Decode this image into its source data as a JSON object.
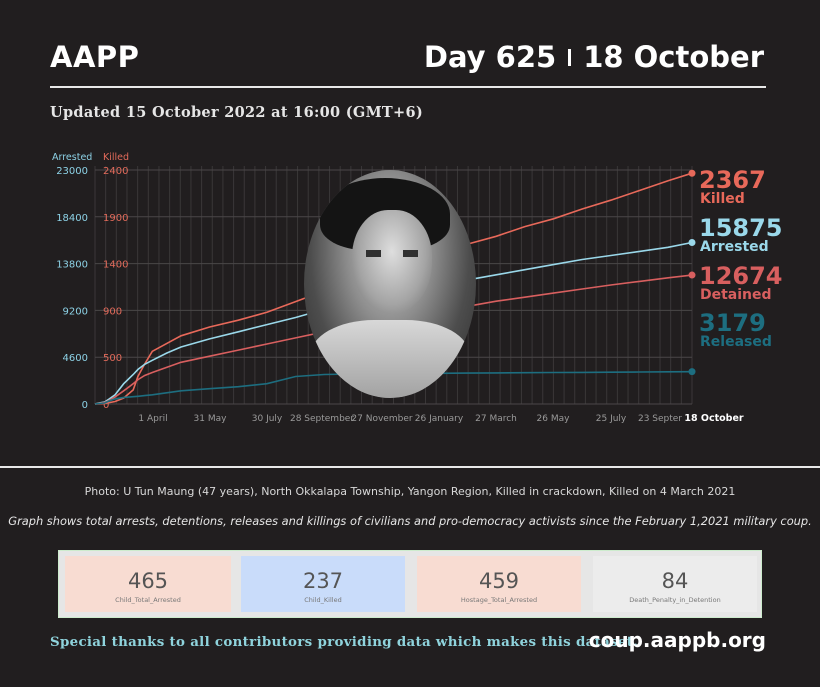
{
  "header": {
    "brand": "AAPP",
    "day": "Day 625",
    "date": "18 October"
  },
  "updated": "Updated 15 October 2022 at 16:00 (GMT+6)",
  "colors": {
    "killed": "#e8695a",
    "arrested": "#9ad8ea",
    "detained": "#d85f5f",
    "released": "#1d6e80",
    "killed_axis": "#e26a5a",
    "arrested_axis": "#8dd2e6"
  },
  "photo_icon": "portrait-photo",
  "chart_data": {
    "type": "line",
    "x_ticks": [
      "1 April",
      "31 May",
      "30 July",
      "28 September",
      "27 November",
      "26 January",
      "27 March",
      "26 May",
      "25 July",
      "23 Septer",
      "18 October"
    ],
    "left_axis": {
      "title": "Arrested",
      "ticks": [
        0,
        4600,
        9200,
        13800,
        18400,
        23000
      ],
      "ylim": [
        0,
        23000
      ]
    },
    "right_axis": {
      "title": "Killed",
      "ticks": [
        0,
        500,
        900,
        1400,
        1900,
        2400
      ],
      "ylim": [
        0,
        2400
      ]
    },
    "grid": true,
    "x": [
      0,
      4,
      10,
      15,
      21,
      30,
      40,
      45,
      52,
      60,
      75,
      90,
      120,
      150,
      180,
      210,
      240,
      270,
      300,
      330,
      360,
      390,
      420,
      450,
      480,
      510,
      540,
      570,
      600,
      625
    ],
    "series": [
      {
        "name": "Killed",
        "axis": "right",
        "color_key": "killed",
        "final_label": "2367",
        "values": [
          0,
          2,
          5,
          14,
          26,
          62,
          145,
          285,
          410,
          540,
          620,
          700,
          790,
          860,
          940,
          1050,
          1160,
          1270,
          1400,
          1500,
          1580,
          1640,
          1720,
          1820,
          1900,
          2000,
          2090,
          2190,
          2290,
          2367
        ]
      },
      {
        "name": "Arrested",
        "axis": "left",
        "color_key": "arrested",
        "final_label": "15875",
        "values": [
          0,
          100,
          200,
          500,
          900,
          2000,
          2900,
          3400,
          3900,
          4300,
          5000,
          5600,
          6400,
          7100,
          7800,
          8500,
          9300,
          9900,
          10500,
          11200,
          11700,
          12200,
          12700,
          13200,
          13700,
          14200,
          14600,
          15000,
          15400,
          15875
        ]
      },
      {
        "name": "Detained",
        "axis": "left",
        "color_key": "detained",
        "final_label": "12674",
        "values": [
          0,
          60,
          150,
          350,
          700,
          1300,
          2000,
          2400,
          2800,
          3100,
          3600,
          4100,
          4700,
          5300,
          5900,
          6500,
          7100,
          7700,
          8200,
          8700,
          9200,
          9600,
          10100,
          10500,
          10900,
          11300,
          11700,
          12050,
          12400,
          12674
        ]
      },
      {
        "name": "Released",
        "axis": "left",
        "color_key": "released",
        "final_label": "3179",
        "values": [
          0,
          50,
          100,
          300,
          500,
          650,
          720,
          760,
          830,
          900,
          1100,
          1300,
          1500,
          1700,
          2000,
          2700,
          2900,
          2950,
          2980,
          3000,
          3020,
          3040,
          3060,
          3080,
          3100,
          3110,
          3130,
          3150,
          3165,
          3179
        ]
      }
    ],
    "end_labels": [
      {
        "value": "2367",
        "label": "Killed",
        "color_key": "killed"
      },
      {
        "value": "15875",
        "label": "Arrested",
        "color_key": "arrested"
      },
      {
        "value": "12674",
        "label": "Detained",
        "color_key": "detained"
      },
      {
        "value": "3179",
        "label": "Released",
        "color_key": "released"
      }
    ]
  },
  "photo_credit": "Photo: U Tun Maung (47 years), North Okkalapa Township, Yangon Region, Killed in crackdown, Killed on 4 March 2021",
  "graph_note": "Graph shows total arrests, detentions, releases and killings of civilians and pro-democracy activists since the February 1,2021 military coup.",
  "stats": [
    {
      "value": "465",
      "label": "Child_Total_Arrested",
      "bg": "#f8dcd2"
    },
    {
      "value": "237",
      "label": "Child_Killed",
      "bg": "#c9dcfa"
    },
    {
      "value": "459",
      "label": "Hostage_Total_Arrested",
      "bg": "#f8dcd2"
    },
    {
      "value": "84",
      "label": "Death_Penalty_in_Detention",
      "bg": "#ececec"
    }
  ],
  "footer": {
    "thanks": "Special thanks to all contributors providing data which makes this dataset.",
    "site": "coup.aappb.org"
  }
}
